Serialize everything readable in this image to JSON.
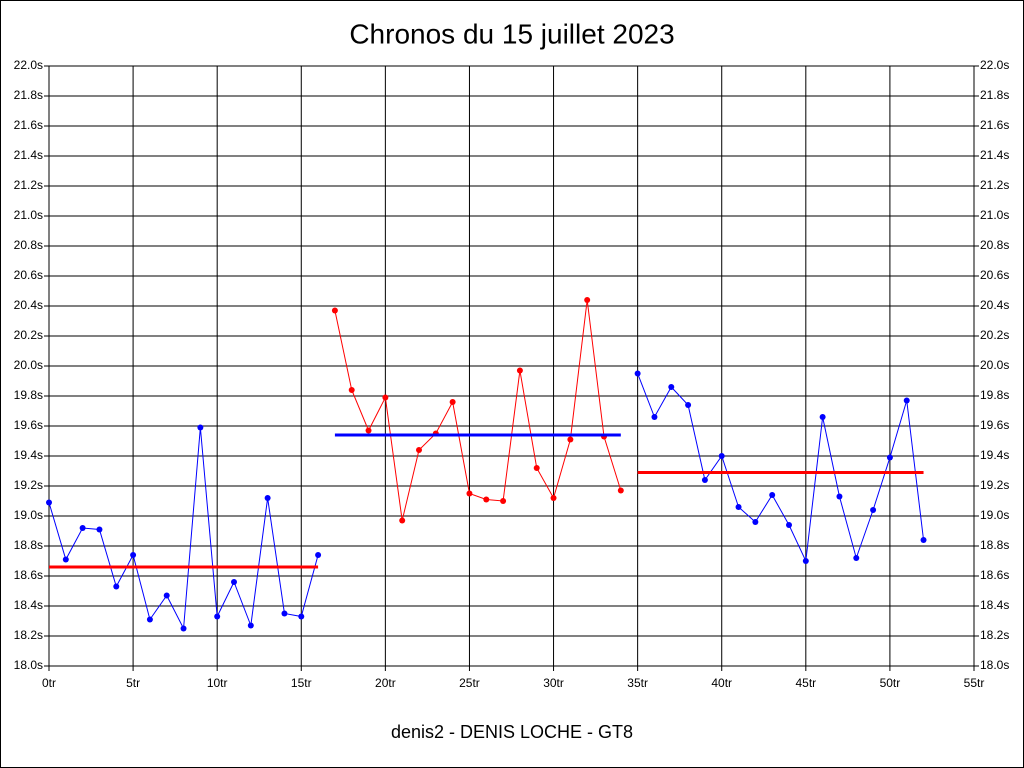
{
  "chart_data": {
    "type": "line",
    "title": "Chronos du 15 juillet 2023",
    "xlabel": "denis2 - DENIS LOCHE - GT8",
    "xlim": [
      0,
      55
    ],
    "ylim": [
      18.0,
      22.0
    ],
    "grid": true,
    "xticks": [
      {
        "value": 0,
        "label": "0tr"
      },
      {
        "value": 5,
        "label": "5tr"
      },
      {
        "value": 10,
        "label": "10tr"
      },
      {
        "value": 15,
        "label": "15tr"
      },
      {
        "value": 20,
        "label": "20tr"
      },
      {
        "value": 25,
        "label": "25tr"
      },
      {
        "value": 30,
        "label": "30tr"
      },
      {
        "value": 35,
        "label": "35tr"
      },
      {
        "value": 40,
        "label": "40tr"
      },
      {
        "value": 45,
        "label": "45tr"
      },
      {
        "value": 50,
        "label": "50tr"
      },
      {
        "value": 55,
        "label": "55tr"
      }
    ],
    "yticks": [
      {
        "value": 18.0,
        "label": "18.0s"
      },
      {
        "value": 18.2,
        "label": "18.2s"
      },
      {
        "value": 18.4,
        "label": "18.4s"
      },
      {
        "value": 18.6,
        "label": "18.6s"
      },
      {
        "value": 18.8,
        "label": "18.8s"
      },
      {
        "value": 19.0,
        "label": "19.0s"
      },
      {
        "value": 19.2,
        "label": "19.2s"
      },
      {
        "value": 19.4,
        "label": "19.4s"
      },
      {
        "value": 19.6,
        "label": "19.6s"
      },
      {
        "value": 19.8,
        "label": "19.8s"
      },
      {
        "value": 20.0,
        "label": "20.0s"
      },
      {
        "value": 20.2,
        "label": "20.2s"
      },
      {
        "value": 20.4,
        "label": "20.4s"
      },
      {
        "value": 20.6,
        "label": "20.6s"
      },
      {
        "value": 20.8,
        "label": "20.8s"
      },
      {
        "value": 21.0,
        "label": "21.0s"
      },
      {
        "value": 21.2,
        "label": "21.2s"
      },
      {
        "value": 21.4,
        "label": "21.4s"
      },
      {
        "value": 21.6,
        "label": "21.6s"
      },
      {
        "value": 21.8,
        "label": "21.8s"
      },
      {
        "value": 22.0,
        "label": "22.0s"
      }
    ],
    "series": [
      {
        "color": "#0000ff",
        "x": [
          0,
          1,
          2,
          3,
          4,
          5,
          6,
          7,
          8,
          9,
          10,
          11,
          12,
          13,
          14,
          15,
          16
        ],
        "values": [
          19.09,
          18.71,
          18.92,
          18.91,
          18.53,
          18.74,
          18.31,
          18.47,
          18.25,
          19.59,
          18.33,
          18.56,
          18.27,
          19.12,
          18.35,
          18.33,
          18.74
        ]
      },
      {
        "color": "#ff0000",
        "x": [
          17,
          18,
          19,
          20,
          21,
          22,
          23,
          24,
          25,
          26,
          27,
          28,
          29,
          30,
          31,
          32,
          33,
          34
        ],
        "values": [
          20.37,
          19.84,
          19.57,
          19.79,
          18.97,
          19.44,
          19.55,
          19.76,
          19.15,
          19.11,
          19.1,
          19.97,
          19.32,
          19.12,
          19.51,
          20.44,
          19.53,
          19.17
        ]
      },
      {
        "color": "#0000ff",
        "x": [
          35,
          36,
          37,
          38,
          39,
          40,
          41,
          42,
          43,
          44,
          45,
          46,
          47,
          48,
          49,
          50,
          51,
          52
        ],
        "values": [
          19.95,
          19.66,
          19.86,
          19.74,
          19.24,
          19.4,
          19.06,
          18.96,
          19.14,
          18.94,
          18.7,
          19.66,
          19.13,
          18.72,
          19.04,
          19.39,
          19.77,
          18.84
        ]
      }
    ],
    "averages": [
      {
        "color": "#ff0000",
        "value": 18.66,
        "x": [
          0,
          16
        ]
      },
      {
        "color": "#0000ff",
        "value": 19.54,
        "x": [
          17,
          34
        ]
      },
      {
        "color": "#ff0000",
        "value": 19.29,
        "x": [
          35,
          52
        ]
      }
    ]
  }
}
